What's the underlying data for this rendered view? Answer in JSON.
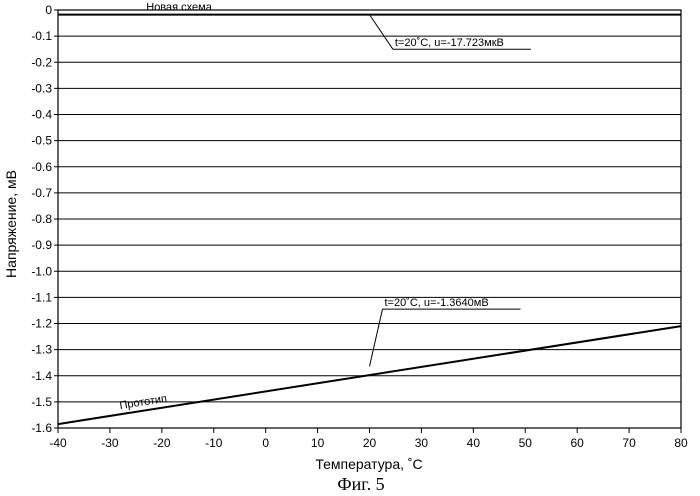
{
  "chart_data": {
    "type": "line",
    "xlabel": "Температура, ˚С",
    "ylabel": "Напряжение, мВ",
    "caption": "Фиг. 5",
    "xlim": [
      -40,
      80
    ],
    "ylim": [
      -1.6,
      0
    ],
    "x_ticks": [
      -40,
      -30,
      -20,
      -10,
      0,
      10,
      20,
      30,
      40,
      50,
      60,
      70,
      80
    ],
    "y_ticks": [
      0,
      -0.1,
      -0.2,
      -0.3,
      -0.4,
      -0.5,
      -0.6,
      -0.7,
      -0.8,
      -0.9,
      -1.0,
      -1.1,
      -1.2,
      -1.3,
      -1.4,
      -1.5,
      -1.6
    ],
    "y_tick_labels": [
      "0",
      "-0.1",
      "-0.2",
      "-0.3",
      "-0.4",
      "-0.5",
      "-0.6",
      "-0.7",
      "-0.8",
      "-0.9",
      "-1.0",
      "-1.1",
      "-1.2",
      "-1.3",
      "-1.4",
      "-1.5",
      "-1.6"
    ],
    "grid": "horizontal",
    "series": [
      {
        "name": "Новая схема",
        "x": [
          -40,
          80
        ],
        "y": [
          -0.0177,
          -0.0177
        ],
        "annotation": {
          "text": "t=20˚C, u=-17.723мкВ",
          "x": 20,
          "y": -0.0177
        }
      },
      {
        "name": "Прототип",
        "x": [
          -40,
          80
        ],
        "y": [
          -1.585,
          -1.21
        ],
        "annotation": {
          "text": "t=20˚C, u=-1.3640мВ",
          "x": 20,
          "y": -1.364
        }
      }
    ]
  }
}
